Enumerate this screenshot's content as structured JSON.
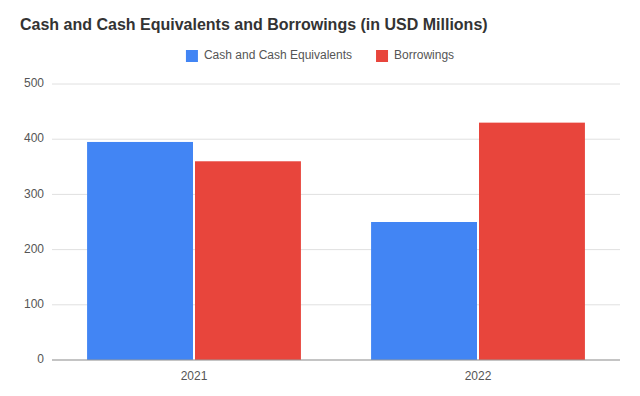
{
  "chart_data": {
    "type": "bar",
    "title": "Cash and Cash Equivalents and Borrowings (in USD Millions)",
    "categories": [
      "2021",
      "2022"
    ],
    "series": [
      {
        "name": "Cash and Cash Equivalents",
        "color": "#4285F4",
        "values": [
          395,
          250
        ]
      },
      {
        "name": "Borrowings",
        "color": "#E8453C",
        "values": [
          360,
          430
        ]
      }
    ],
    "ylim": [
      0,
      500
    ],
    "yticks": [
      0,
      100,
      200,
      300,
      400,
      500
    ],
    "grid": true,
    "legend": "top"
  }
}
